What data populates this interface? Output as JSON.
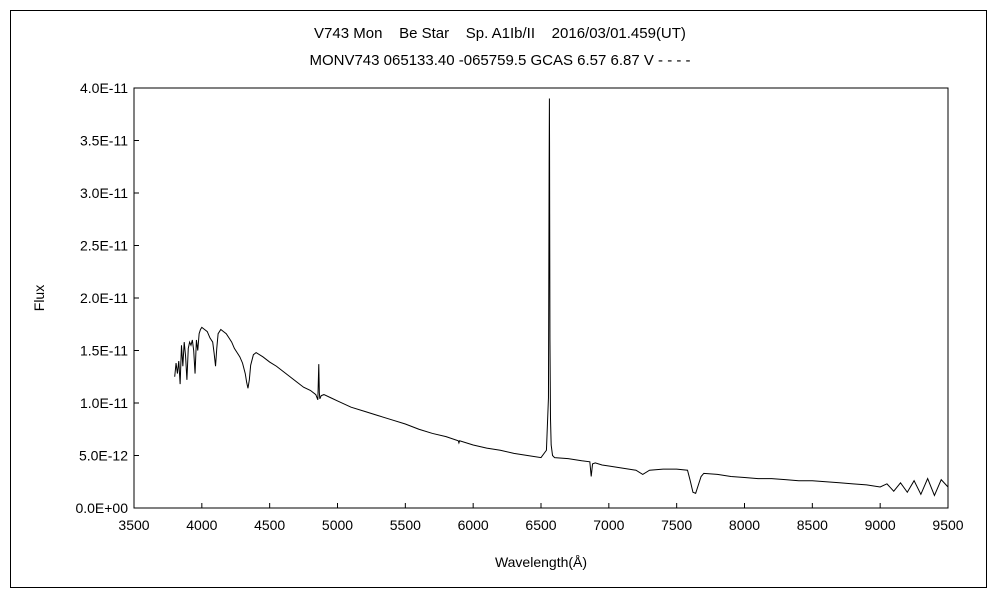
{
  "chart_data": {
    "type": "line",
    "title": "V743 Mon    Be Star    Sp. A1Ib/II    2016/03/01.459(UT)",
    "subtitle": "MONV743 065133.40 -065759.5 GCAS 6.57 6.87 V - - - -",
    "xlabel": "Wavelength(Å)",
    "ylabel": "Flux",
    "xlim": [
      3500,
      9500
    ],
    "ylim": [
      0,
      4e-11
    ],
    "xticks": [
      3500,
      4000,
      4500,
      5000,
      5500,
      6000,
      6500,
      7000,
      7500,
      8000,
      8500,
      9000,
      9500
    ],
    "xtick_labels": [
      "3500",
      "4000",
      "4500",
      "5000",
      "5500",
      "6000",
      "6500",
      "7000",
      "7500",
      "8000",
      "8500",
      "9000",
      "9500"
    ],
    "yticks": [
      0,
      5e-12,
      1e-11,
      1.5e-11,
      2e-11,
      2.5e-11,
      3e-11,
      3.5e-11,
      4e-11
    ],
    "ytick_labels": [
      "0.0E+00",
      "5.0E-12",
      "1.0E-11",
      "1.5E-11",
      "2.0E-11",
      "2.5E-11",
      "3.0E-11",
      "3.5E-11",
      "4.0E-11"
    ],
    "grid": false,
    "series": [
      {
        "x": [
          3800,
          3810,
          3820,
          3830,
          3840,
          3850,
          3860,
          3870,
          3880,
          3890,
          3900,
          3910,
          3920,
          3930,
          3940,
          3950,
          3960,
          3970,
          3980,
          3990,
          4000,
          4020,
          4040,
          4060,
          4080,
          4090,
          4101,
          4110,
          4120,
          4140,
          4160,
          4180,
          4200,
          4220,
          4240,
          4260,
          4280,
          4300,
          4320,
          4330,
          4340,
          4350,
          4360,
          4380,
          4400,
          4450,
          4500,
          4550,
          4600,
          4650,
          4700,
          4750,
          4800,
          4840,
          4855,
          4862,
          4866,
          4870,
          4880,
          4900,
          4950,
          5000,
          5100,
          5200,
          5300,
          5400,
          5500,
          5600,
          5700,
          5800,
          5890,
          5895,
          5900,
          6000,
          6100,
          6200,
          6300,
          6400,
          6500,
          6540,
          6555,
          6560,
          6562,
          6563,
          6564,
          6566,
          6570,
          6575,
          6585,
          6600,
          6700,
          6800,
          6860,
          6870,
          6880,
          6900,
          6950,
          7000,
          7100,
          7200,
          7250,
          7300,
          7400,
          7500,
          7580,
          7600,
          7620,
          7640,
          7660,
          7680,
          7700,
          7800,
          7900,
          8000,
          8100,
          8200,
          8300,
          8400,
          8500,
          8600,
          8700,
          8800,
          8900,
          9000,
          9050,
          9100,
          9150,
          9200,
          9250,
          9300,
          9350,
          9400,
          9450,
          9500
        ],
        "y": [
          1.25e-11,
          1.38e-11,
          1.28e-11,
          1.4e-11,
          1.18e-11,
          1.55e-11,
          1.35e-11,
          1.58e-11,
          1.45e-11,
          1.22e-11,
          1.52e-11,
          1.58e-11,
          1.55e-11,
          1.6e-11,
          1.5e-11,
          1.28e-11,
          1.6e-11,
          1.5e-11,
          1.66e-11,
          1.7e-11,
          1.72e-11,
          1.7e-11,
          1.68e-11,
          1.62e-11,
          1.58e-11,
          1.48e-11,
          1.35e-11,
          1.52e-11,
          1.66e-11,
          1.7e-11,
          1.68e-11,
          1.66e-11,
          1.62e-11,
          1.58e-11,
          1.52e-11,
          1.48e-11,
          1.44e-11,
          1.38e-11,
          1.28e-11,
          1.2e-11,
          1.14e-11,
          1.22e-11,
          1.36e-11,
          1.46e-11,
          1.48e-11,
          1.44e-11,
          1.39e-11,
          1.35e-11,
          1.3e-11,
          1.25e-11,
          1.2e-11,
          1.15e-11,
          1.12e-11,
          1.08e-11,
          1.03e-11,
          1.37e-11,
          1.1e-11,
          1.04e-11,
          1.07e-11,
          1.08e-11,
          1.05e-11,
          1.02e-11,
          9.6e-12,
          9.2e-12,
          8.8e-12,
          8.4e-12,
          8e-12,
          7.5e-12,
          7.1e-12,
          6.8e-12,
          6.4e-12,
          6.2e-12,
          6.4e-12,
          6e-12,
          5.7e-12,
          5.5e-12,
          5.2e-12,
          5e-12,
          4.8e-12,
          5.5e-12,
          1.05e-11,
          3.28e-11,
          3.9e-11,
          3.45e-11,
          2.8e-11,
          1.6e-11,
          8.5e-12,
          6e-12,
          5e-12,
          4.8e-12,
          4.7e-12,
          4.5e-12,
          4.4e-12,
          3e-12,
          4.2e-12,
          4.3e-12,
          4.1e-12,
          4e-12,
          3.8e-12,
          3.6e-12,
          3.2e-12,
          3.6e-12,
          3.7e-12,
          3.7e-12,
          3.6e-12,
          2.6e-12,
          1.5e-12,
          1.4e-12,
          2.2e-12,
          3e-12,
          3.3e-12,
          3.2e-12,
          3e-12,
          2.9e-12,
          2.8e-12,
          2.8e-12,
          2.7e-12,
          2.6e-12,
          2.6e-12,
          2.5e-12,
          2.4e-12,
          2.3e-12,
          2.2e-12,
          2e-12,
          2.3e-12,
          1.6e-12,
          2.4e-12,
          1.5e-12,
          2.6e-12,
          1.3e-12,
          2.8e-12,
          1.2e-12,
          2.7e-12,
          2e-12
        ]
      }
    ]
  }
}
